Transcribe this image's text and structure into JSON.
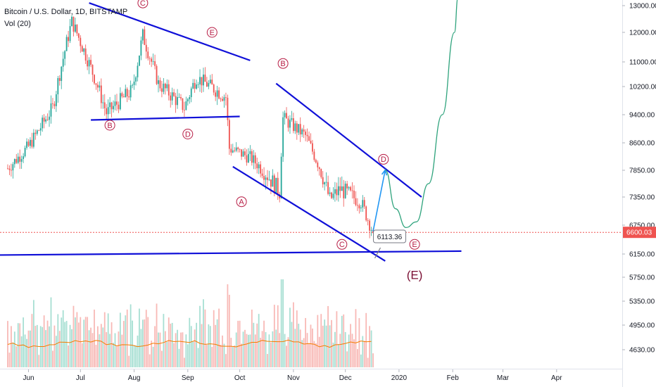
{
  "header": {
    "symbol_line": "Bitcoin / U.S. Dollar, 1D, BITSTAMP",
    "volume_label": "Vol (20)"
  },
  "chart_data": {
    "type": "candlestick",
    "price_axis": {
      "ticks": [
        13000,
        12000,
        11000,
        10200,
        9400,
        8600,
        7850,
        7350,
        6750,
        6150,
        5750,
        5350,
        4950,
        4630
      ],
      "tick_labels": [
        "13000.00",
        "12000.00",
        "11000.00",
        "10200.00",
        "9400.00",
        "8600.00",
        "7850.00",
        "7350.00",
        "6750.00",
        "6150.00",
        "5750.00",
        "5350.00",
        "4950.00",
        "4630.00"
      ],
      "last_price": 6600.03,
      "last_price_label": "6600.03"
    },
    "time_axis": {
      "labels": [
        "Jun",
        "Jul",
        "Aug",
        "Sep",
        "Oct",
        "Nov",
        "Dec",
        "2020",
        "Feb",
        "Mar",
        "Apr"
      ]
    },
    "candles_summary": {
      "start": "2019-05-20",
      "end": "2019-12-17",
      "anchors": [
        {
          "date": "2019-05-20",
          "close": 7900
        },
        {
          "date": "2019-06-01",
          "close": 8500
        },
        {
          "date": "2019-06-15",
          "close": 9600
        },
        {
          "date": "2019-06-26",
          "close": 12400
        },
        {
          "date": "2019-07-05",
          "close": 11100
        },
        {
          "date": "2019-07-16",
          "close": 9450
        },
        {
          "date": "2019-07-31",
          "close": 10100
        },
        {
          "date": "2019-08-06",
          "close": 11900
        },
        {
          "date": "2019-08-15",
          "close": 10300
        },
        {
          "date": "2019-08-30",
          "close": 9600
        },
        {
          "date": "2019-09-06",
          "close": 10500
        },
        {
          "date": "2019-09-23",
          "close": 9900
        },
        {
          "date": "2019-09-25",
          "close": 8450
        },
        {
          "date": "2019-10-07",
          "close": 8200
        },
        {
          "date": "2019-10-24",
          "close": 7450
        },
        {
          "date": "2019-10-26",
          "close": 9300
        },
        {
          "date": "2019-11-08",
          "close": 8800
        },
        {
          "date": "2019-11-22",
          "close": 7300
        },
        {
          "date": "2019-11-28",
          "close": 7500
        },
        {
          "date": "2019-12-10",
          "close": 7250
        },
        {
          "date": "2019-12-17",
          "close": 6600
        }
      ]
    },
    "annotations": {
      "price_callout": {
        "label": "6113.36",
        "date": "2019-12-18",
        "price": 6113.36
      },
      "wave_labels_circled": [
        {
          "text": "B",
          "date": "2019-07-18",
          "price": 9100
        },
        {
          "text": "D",
          "date": "2019-09-01",
          "price": 8850
        },
        {
          "text": "E",
          "date": "2019-09-15",
          "price": 12000
        },
        {
          "text": "C",
          "date": "2019-08-06",
          "price": 13100
        },
        {
          "text": "A",
          "date": "2019-10-02",
          "price": 7250
        },
        {
          "text": "B",
          "date": "2019-10-26",
          "price": 10950
        },
        {
          "text": "C",
          "date": "2019-11-29",
          "price": 6350
        },
        {
          "text": "D",
          "date": "2019-12-23",
          "price": 8150
        },
        {
          "text": "E",
          "date": "2020-01-10",
          "price": 6350
        }
      ],
      "big_label": {
        "text": "(E)",
        "date": "2020-01-10",
        "price": 5720
      },
      "trendlines": [
        {
          "from": {
            "date": "2019-07-06",
            "price": 13100
          },
          "to": {
            "date": "2019-10-07",
            "price": 11050
          }
        },
        {
          "from": {
            "date": "2019-07-07",
            "price": 9250
          },
          "to": {
            "date": "2019-10-01",
            "price": 9350
          }
        },
        {
          "from": {
            "date": "2019-09-27",
            "price": 7950
          },
          "to": {
            "date": "2019-12-24",
            "price": 6030
          }
        },
        {
          "from": {
            "date": "2019-10-22",
            "price": 10300
          },
          "to": {
            "date": "2020-01-14",
            "price": 7350
          }
        },
        {
          "from": {
            "date": "2019-05-08",
            "price": 6130
          },
          "to": {
            "date": "2020-02-06",
            "price": 6210
          }
        }
      ],
      "projection_arrow": {
        "from": {
          "date": "2019-12-17",
          "price": 6620
        },
        "to": {
          "date": "2019-12-24",
          "price": 7860
        }
      },
      "projection_curve": [
        {
          "date": "2019-12-24",
          "price": 7860
        },
        {
          "date": "2019-12-30",
          "price": 7100
        },
        {
          "date": "2020-01-05",
          "price": 6700
        },
        {
          "date": "2020-01-11",
          "price": 6820
        },
        {
          "date": "2020-01-18",
          "price": 7600
        },
        {
          "date": "2020-01-26",
          "price": 9400
        },
        {
          "date": "2020-02-02",
          "price": 12000
        },
        {
          "date": "2020-02-04",
          "price": 13300
        }
      ]
    },
    "colors": {
      "up": "#26a69a",
      "down": "#ef5350",
      "vol_up": "#a7dfd3",
      "vol_down": "#f8b9b6",
      "trendline": "#1010d8",
      "arrow": "#2196f3",
      "curve": "#2ea37c",
      "wave_label": "#b71c44",
      "volume_ma": "#f57c00",
      "last_price_line": "#ef5350"
    }
  }
}
